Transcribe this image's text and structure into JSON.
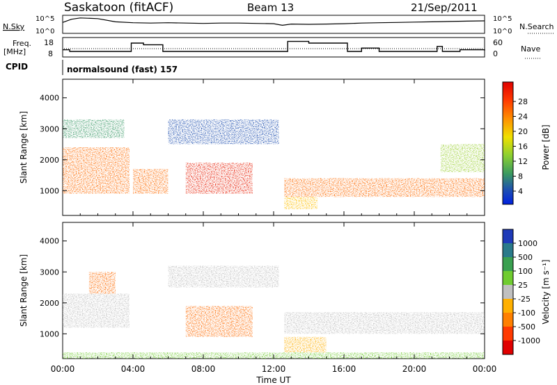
{
  "header": {
    "station": "Saskatoon (fitACF)",
    "beam": "Beam 13",
    "date": "21/Sep/2011"
  },
  "noise_panel": {
    "left_label": "N.Sky",
    "right_label": "N.Search",
    "left_ticks": [
      "10^5",
      "10^0"
    ],
    "right_ticks": [
      "10^5",
      "10^0"
    ]
  },
  "freq_panel": {
    "left_label_line1": "Freq.",
    "left_label_line2": "[MHz]",
    "right_label": "Nave",
    "left_ticks": [
      "18",
      "8"
    ],
    "right_ticks": [
      "60",
      "0"
    ]
  },
  "cpid": {
    "label": "CPID",
    "value": "normalsound (fast) 157"
  },
  "power_colorbar": {
    "label": "Power [dB]",
    "ticks": [
      "28",
      "24",
      "20",
      "16",
      "12",
      "8",
      "4"
    ],
    "colors": [
      "#e00000",
      "#ff3a00",
      "#ff7800",
      "#ffb000",
      "#f0e000",
      "#a8d820",
      "#48b04a",
      "#2a8a7a",
      "#1e50b0",
      "#0020e0"
    ]
  },
  "velocity_colorbar": {
    "label": "Velocity [m s⁻¹]",
    "ticks": [
      "1000",
      "500",
      "100",
      "25",
      "-25",
      "-100",
      "-500",
      "-1000"
    ],
    "colors": [
      "#1e3ab8",
      "#2a7a8a",
      "#3aa050",
      "#70cc30",
      "#c0c0c0",
      "#ffb000",
      "#ff8000",
      "#ff3a00",
      "#e00000"
    ]
  },
  "chart_data": [
    {
      "type": "line",
      "title": "Saskatoon (fitACF) Beam 13 21/Sep/2011",
      "name": "noise",
      "series": [
        {
          "name": "N.Sky",
          "x": [
            0,
            0.5,
            1,
            2,
            3,
            4,
            5,
            6,
            7,
            8,
            9,
            10,
            11,
            12,
            12.5,
            13,
            14,
            15,
            16,
            17,
            18,
            19,
            20,
            21,
            22,
            23,
            24
          ],
          "values": [
            3.2,
            4.2,
            4.6,
            4.4,
            3.4,
            3.1,
            3.0,
            3.1,
            3.0,
            2.9,
            3.0,
            3.0,
            2.9,
            2.8,
            2.3,
            2.7,
            2.6,
            2.7,
            2.8,
            3.0,
            3.1,
            3.2,
            3.3,
            3.4,
            3.5,
            3.6,
            3.7
          ]
        }
      ],
      "ylabel": "N.Sky",
      "ylim": [
        "10^0",
        "10^5"
      ]
    },
    {
      "type": "line",
      "name": "frequency",
      "series": [
        {
          "name": "Freq.",
          "x": [
            0,
            0.4,
            2.8,
            3.9,
            4.6,
            5.7,
            12.4,
            12.8,
            14.0,
            16.2,
            17.0,
            18.0,
            18.5,
            21.3,
            21.6,
            22.6,
            24
          ],
          "values": [
            11.5,
            10.5,
            10.5,
            15.5,
            14.5,
            10.5,
            10.5,
            16.5,
            15.5,
            10.5,
            12.5,
            10.5,
            10.5,
            13.5,
            10.5,
            11.5,
            11.0
          ]
        }
      ],
      "ylabel": "Freq. [MHz]",
      "ylim": [
        8,
        18
      ]
    },
    {
      "type": "heatmap",
      "name": "power",
      "x": [
        "00:00",
        "04:00",
        "08:00",
        "12:00",
        "16:00",
        "20:00",
        "00:00"
      ],
      "xlim_hours": [
        0,
        24
      ],
      "ylabel": "Slant Range [km]",
      "yticks": [
        1000,
        2000,
        3000,
        4000
      ],
      "ylim": [
        200,
        4600
      ],
      "colorbar": "Power [dB]",
      "echo_regions": [
        {
          "t0": 0.0,
          "t1": 3.8,
          "r0": 900,
          "r1": 2400,
          "level": 24
        },
        {
          "t0": 0.0,
          "t1": 3.5,
          "r0": 2700,
          "r1": 3300,
          "level": 12
        },
        {
          "t0": 4.0,
          "t1": 6.0,
          "r0": 900,
          "r1": 1700,
          "level": 24
        },
        {
          "t0": 6.0,
          "t1": 12.3,
          "r0": 2500,
          "r1": 3300,
          "level": 8
        },
        {
          "t0": 7.0,
          "t1": 10.8,
          "r0": 900,
          "r1": 1900,
          "level": 26
        },
        {
          "t0": 12.6,
          "t1": 14.5,
          "r0": 400,
          "r1": 900,
          "level": 20
        },
        {
          "t0": 12.6,
          "t1": 24.0,
          "r0": 800,
          "r1": 1400,
          "level": 22
        },
        {
          "t0": 21.5,
          "t1": 24.0,
          "r0": 1600,
          "r1": 2500,
          "level": 14
        }
      ]
    },
    {
      "type": "heatmap",
      "name": "velocity",
      "x": [
        "00:00",
        "04:00",
        "08:00",
        "12:00",
        "16:00",
        "20:00",
        "00:00"
      ],
      "xlim_hours": [
        0,
        24
      ],
      "xlabel": "Time UT",
      "ylabel": "Slant Range [km]",
      "yticks": [
        1000,
        2000,
        3000,
        4000
      ],
      "ylim": [
        200,
        4600
      ],
      "colorbar": "Velocity [m s^-1]",
      "echo_regions": [
        {
          "t0": 0.0,
          "t1": 3.8,
          "r0": 1200,
          "r1": 2300,
          "level": 0
        },
        {
          "t0": 1.5,
          "t1": 3.0,
          "r0": 2300,
          "r1": 3000,
          "level": -300
        },
        {
          "t0": 6.0,
          "t1": 12.3,
          "r0": 2500,
          "r1": 3200,
          "level": 0
        },
        {
          "t0": 7.0,
          "t1": 10.8,
          "r0": 900,
          "r1": 1900,
          "level": -400
        },
        {
          "t0": 12.6,
          "t1": 15.0,
          "r0": 400,
          "r1": 900,
          "level": -200
        },
        {
          "t0": 12.6,
          "t1": 24.0,
          "r0": 1000,
          "r1": 1700,
          "level": 0
        },
        {
          "t0": 0.0,
          "t1": 24.0,
          "r0": 200,
          "r1": 400,
          "level": 200
        }
      ]
    }
  ],
  "axes": {
    "x_ticks": [
      "00:00",
      "04:00",
      "08:00",
      "12:00",
      "16:00",
      "20:00",
      "00:00"
    ],
    "x_label": "Time UT",
    "y_label": "Slant Range [km]",
    "y_ticks": [
      "4000",
      "3000",
      "2000",
      "1000"
    ]
  }
}
